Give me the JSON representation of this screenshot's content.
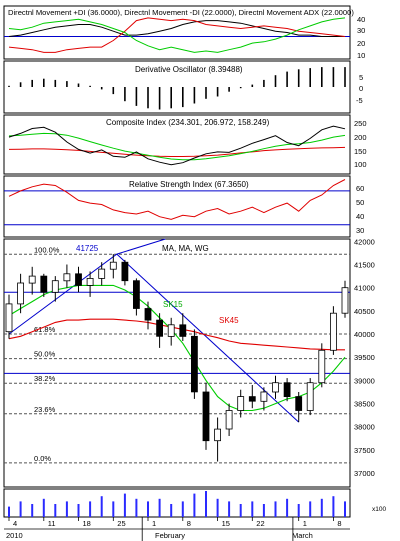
{
  "colors": {
    "background": "#ffffff",
    "panel_border": "#000000",
    "grid": "#9a9a9a",
    "plus_di": "#00cc00",
    "minus_di": "#e00000",
    "adx": "#000000",
    "deriv_bar": "#000000",
    "composite": "#000000",
    "comp_ma_fast": "#00cc00",
    "comp_ma_slow": "#e00000",
    "rsi": "#e00000",
    "blue_line": "#0000cc",
    "candle_up": "#ffffff",
    "candle_down": "#000000",
    "sk15": "#00cc00",
    "sk45": "#e00000",
    "volume": "#2a2aff"
  },
  "panels": {
    "dmi": {
      "title": "Directnl Movement +DI (36.0000), Directnl Movement -DI (22.0000), Directnl Movement ADX (22.0000)",
      "ticks": [
        "40",
        "30",
        "20",
        "10"
      ]
    },
    "deriv": {
      "title": "Derivative Oscillator (8.39488)",
      "ticks": [
        "5",
        "0",
        "-5"
      ]
    },
    "composite": {
      "title": "Composite Index (234.301, 206.972, 158.249)",
      "ticks": [
        "250",
        "200",
        "150",
        "100"
      ]
    },
    "rsi": {
      "title": "Relative Strength Index (67.3650)",
      "ticks": [
        "60",
        "50",
        "40",
        "30"
      ]
    },
    "price": {
      "title": "MA, MA, WG",
      "ticks": [
        "42000",
        "41500",
        "41000",
        "40500",
        "40000",
        "39500",
        "39000",
        "38500",
        "38000",
        "37500",
        "37000"
      ],
      "high_label": "41725",
      "sk15_label": "SK15",
      "sk45_label": "SK45",
      "fib_labels": [
        "100.0%",
        "61.8%",
        "50.0%",
        "38.2%",
        "23.6%",
        "0.0%"
      ]
    },
    "volume": {
      "tick": "x100"
    }
  },
  "x_axis": {
    "ticks": [
      "4",
      "11",
      "18",
      "25",
      "1",
      "8",
      "15",
      "22",
      "1",
      "8"
    ],
    "months": [
      "2010",
      "February",
      "March"
    ]
  },
  "chart_data": [
    {
      "type": "line",
      "title": "Directnl Movement +DI (36.0000), Directnl Movement -DI (22.0000), Directnl Movement ADX (22.0000)",
      "ylim": [
        5,
        45
      ],
      "horizontal_line": 22,
      "series": [
        {
          "name": "Directnl Movement +DI",
          "values": [
            28,
            27,
            29,
            32,
            33,
            34,
            35,
            33,
            31,
            28,
            25,
            19,
            15,
            12,
            14,
            12,
            10,
            11,
            10,
            12,
            14,
            17,
            18,
            20,
            23,
            27,
            30,
            33,
            35,
            36
          ]
        },
        {
          "name": "Directnl Movement -DI",
          "values": [
            14,
            13,
            12,
            10,
            10,
            12,
            13,
            14,
            14,
            19,
            26,
            34,
            36,
            35,
            34,
            35,
            34,
            31,
            30,
            29,
            28,
            29,
            30,
            29,
            28,
            26,
            25,
            24,
            23,
            22
          ]
        },
        {
          "name": "Directnl Movement ADX",
          "values": [
            22,
            23,
            25,
            27,
            29,
            30,
            31,
            31,
            29,
            26,
            23,
            23,
            24,
            26,
            28,
            31,
            33,
            34,
            34,
            33,
            32,
            30,
            28,
            26,
            25,
            23,
            23,
            22,
            22,
            22
          ]
        }
      ]
    },
    {
      "type": "bar",
      "title": "Derivative Oscillator (8.39488)",
      "ylim": [
        -11,
        11
      ],
      "values": [
        0.5,
        2,
        3,
        3.5,
        3,
        2.5,
        1.5,
        0.5,
        -1,
        -3,
        -6,
        -8,
        -9,
        -9.5,
        -9,
        -8.5,
        -7,
        -5,
        -4,
        -2,
        -0.5,
        1,
        3,
        5,
        6.5,
        7.5,
        8,
        8.4,
        8.4,
        8.4
      ]
    },
    {
      "type": "line",
      "title": "Composite Index (234.301, 206.972, 158.249)",
      "ylim": [
        50,
        290
      ],
      "series": [
        {
          "name": "Composite Index",
          "values": [
            200,
            215,
            235,
            240,
            220,
            180,
            150,
            135,
            148,
            122,
            118,
            140,
            112,
            98,
            88,
            96,
            115,
            132,
            140,
            138,
            155,
            175,
            190,
            206,
            178,
            165,
            195,
            230,
            245,
            234
          ]
        },
        {
          "name": "Composite Index 206.972",
          "values": [
            205,
            208,
            212,
            215,
            214,
            208,
            196,
            182,
            168,
            155,
            143,
            135,
            126,
            118,
            111,
            108,
            108,
            112,
            118,
            124,
            133,
            142,
            153,
            163,
            170,
            173,
            178,
            188,
            200,
            207
          ]
        },
        {
          "name": "Composite Index 158.249",
          "values": [
            150,
            151,
            152,
            152,
            151,
            149,
            146,
            142,
            138,
            134,
            130,
            127,
            124,
            122,
            121,
            121,
            122,
            124,
            127,
            131,
            136,
            140,
            145,
            148,
            151,
            153,
            155,
            156,
            157,
            158
          ]
        }
      ]
    },
    {
      "type": "line",
      "title": "Relative Strength Index (67.3650)",
      "ylim": [
        25,
        70
      ],
      "horizontal_lines": [
        59,
        34
      ],
      "series": [
        {
          "name": "Relative Strength Index",
          "values": [
            55,
            59,
            62,
            64,
            63,
            58,
            52,
            50,
            49,
            45,
            43,
            42,
            44,
            40,
            38,
            41,
            40,
            44,
            46,
            42,
            44,
            47,
            43,
            47,
            50,
            44,
            52,
            56,
            63,
            67.4
          ]
        }
      ]
    },
    {
      "type": "candlestick",
      "title": "MA, MA, WG",
      "ylim": [
        36700,
        42050
      ],
      "high_label_value": 41725,
      "resistance_level": 40900,
      "support_level": 39150,
      "retracement_levels": [
        {
          "label": "100.0%",
          "value": 41720
        },
        {
          "label": "61.8%",
          "value": 40000
        },
        {
          "label": "50.0%",
          "value": 39470
        },
        {
          "label": "38.2%",
          "value": 38940
        },
        {
          "label": "23.6%",
          "value": 38280
        },
        {
          "label": "0.0%",
          "value": 37220
        }
      ],
      "candles": [
        {
          "o": 40050,
          "h": 40850,
          "l": 39900,
          "c": 40650
        },
        {
          "o": 40650,
          "h": 41300,
          "l": 40450,
          "c": 41100
        },
        {
          "o": 41100,
          "h": 41450,
          "l": 40850,
          "c": 41250
        },
        {
          "o": 41250,
          "h": 41300,
          "l": 40800,
          "c": 40900
        },
        {
          "o": 40900,
          "h": 41250,
          "l": 40700,
          "c": 41150
        },
        {
          "o": 41150,
          "h": 41500,
          "l": 41000,
          "c": 41300
        },
        {
          "o": 41300,
          "h": 41450,
          "l": 40900,
          "c": 41050
        },
        {
          "o": 41050,
          "h": 41350,
          "l": 40800,
          "c": 41200
        },
        {
          "o": 41200,
          "h": 41550,
          "l": 41050,
          "c": 41400
        },
        {
          "o": 41400,
          "h": 41725,
          "l": 41200,
          "c": 41550
        },
        {
          "o": 41550,
          "h": 41600,
          "l": 41050,
          "c": 41150
        },
        {
          "o": 41150,
          "h": 41200,
          "l": 40400,
          "c": 40550
        },
        {
          "o": 40550,
          "h": 40700,
          "l": 40100,
          "c": 40300
        },
        {
          "o": 40300,
          "h": 40450,
          "l": 39700,
          "c": 39950
        },
        {
          "o": 39950,
          "h": 40350,
          "l": 39750,
          "c": 40200
        },
        {
          "o": 40200,
          "h": 40450,
          "l": 39850,
          "c": 39950
        },
        {
          "o": 39950,
          "h": 40100,
          "l": 38600,
          "c": 38750
        },
        {
          "o": 38750,
          "h": 38950,
          "l": 37500,
          "c": 37700
        },
        {
          "o": 37700,
          "h": 38200,
          "l": 37250,
          "c": 37950
        },
        {
          "o": 37950,
          "h": 38500,
          "l": 37800,
          "c": 38350
        },
        {
          "o": 38350,
          "h": 38800,
          "l": 38200,
          "c": 38650
        },
        {
          "o": 38650,
          "h": 38900,
          "l": 38400,
          "c": 38550
        },
        {
          "o": 38550,
          "h": 38850,
          "l": 38350,
          "c": 38750
        },
        {
          "o": 38750,
          "h": 39100,
          "l": 38600,
          "c": 38950
        },
        {
          "o": 38950,
          "h": 39050,
          "l": 38550,
          "c": 38650
        },
        {
          "o": 38650,
          "h": 38750,
          "l": 38100,
          "c": 38350
        },
        {
          "o": 38350,
          "h": 39050,
          "l": 38250,
          "c": 38950
        },
        {
          "o": 38950,
          "h": 39800,
          "l": 38850,
          "c": 39650
        },
        {
          "o": 39650,
          "h": 40600,
          "l": 39550,
          "c": 40450
        },
        {
          "o": 40450,
          "h": 41150,
          "l": 40350,
          "c": 41000
        }
      ],
      "series": [
        {
          "name": "SK15",
          "values": [
            40400,
            40550,
            40700,
            40850,
            40950,
            41000,
            41050,
            41050,
            41050,
            41050,
            40950,
            40800,
            40600,
            40350,
            40100,
            39800,
            39400,
            39000,
            38650,
            38450,
            38350,
            38350,
            38400,
            38500,
            38600,
            38650,
            38750,
            38950,
            39200,
            39500
          ]
        },
        {
          "name": "SK45",
          "values": [
            39900,
            39950,
            40050,
            40150,
            40250,
            40300,
            40300,
            40320,
            40320,
            40320,
            40300,
            40280,
            40250,
            40200,
            40150,
            40100,
            40050,
            39980,
            39920,
            39850,
            39800,
            39780,
            39760,
            39740,
            39720,
            39700,
            39680,
            39670,
            39660,
            39660
          ]
        }
      ]
    },
    {
      "type": "bar",
      "title": "",
      "ylim": [
        0,
        10
      ],
      "values": [
        4,
        6,
        5,
        7,
        5,
        6,
        5,
        6,
        8,
        6,
        9,
        7,
        6,
        7,
        5,
        6,
        9,
        10,
        7,
        6,
        5,
        6,
        5,
        6,
        7,
        5,
        6,
        7,
        8,
        6
      ]
    }
  ]
}
